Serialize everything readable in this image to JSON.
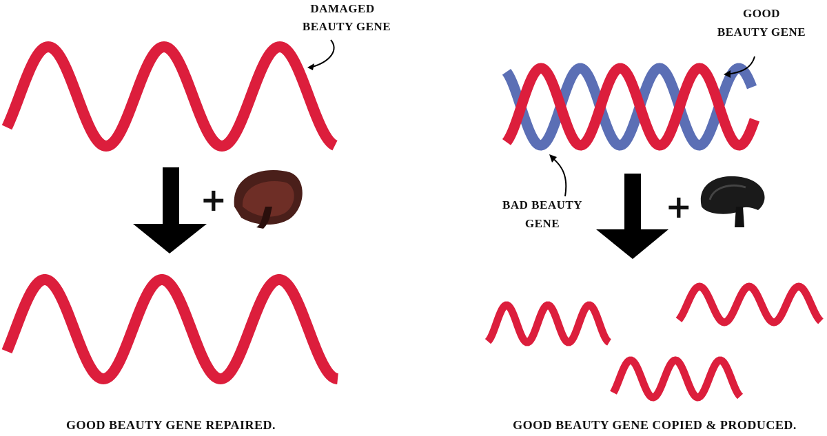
{
  "left_panel": {
    "damaged_label": [
      "DAMAGED",
      "BEAUTY GENE"
    ],
    "operator": "+",
    "caption": "GOOD BEAUTY GENE REPAIRED."
  },
  "right_panel": {
    "good_label": [
      "GOOD",
      "BEAUTY GENE"
    ],
    "bad_label": [
      "BAD BEAUTY",
      "GENE"
    ],
    "operator": "+",
    "caption": "GOOD BEAUTY GENE COPIED & PRODUCED."
  }
}
